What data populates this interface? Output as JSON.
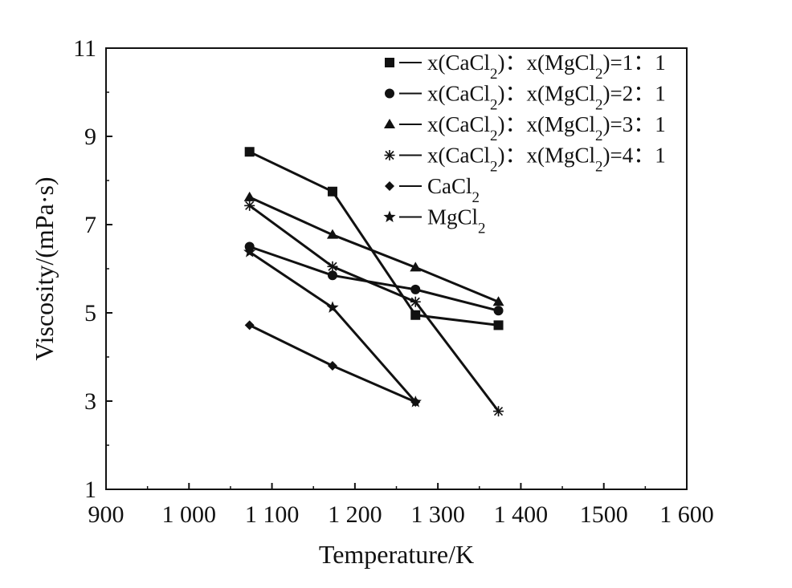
{
  "chart_data": {
    "type": "line",
    "xlabel": "Temperature/K",
    "ylabel": "Viscosity/(mPa·s)",
    "xlim": [
      900,
      1600
    ],
    "ylim": [
      1,
      11
    ],
    "x_ticks": [
      900,
      1000,
      1100,
      1200,
      1300,
      1400,
      1500,
      1600
    ],
    "x_tick_labels": [
      "900",
      "1 000",
      "1 100",
      "1 200",
      "1 300",
      "1 400",
      "1500",
      "1 600"
    ],
    "y_ticks": [
      1,
      3,
      5,
      7,
      9,
      11
    ],
    "y_tick_labels": [
      "1",
      "3",
      "5",
      "7",
      "9",
      "11"
    ],
    "grid": false,
    "legend_position": "top-right",
    "series": [
      {
        "name": "x(CaCl2)：x(MgCl2)=1：1",
        "marker": "square",
        "x": [
          1073,
          1173,
          1273,
          1373
        ],
        "y": [
          8.65,
          7.75,
          4.95,
          4.72
        ]
      },
      {
        "name": "x(CaCl2)：x(MgCl2)=2：1",
        "marker": "circle",
        "x": [
          1073,
          1173,
          1273,
          1373
        ],
        "y": [
          6.5,
          5.85,
          5.53,
          5.05
        ]
      },
      {
        "name": "x(CaCl2)：x(MgCl2)=3：1",
        "marker": "triangle",
        "x": [
          1073,
          1173,
          1273,
          1373
        ],
        "y": [
          7.62,
          6.77,
          6.03,
          5.25
        ]
      },
      {
        "name": "x(CaCl2)：x(MgCl2)=4：1",
        "marker": "asterisk",
        "x": [
          1073,
          1173,
          1273,
          1373
        ],
        "y": [
          7.43,
          6.05,
          5.25,
          2.77
        ]
      },
      {
        "name": "CaCl2",
        "marker": "diamond",
        "x": [
          1073,
          1173,
          1273
        ],
        "y": [
          4.72,
          3.8,
          2.98
        ]
      },
      {
        "name": "MgCl2",
        "marker": "star",
        "x": [
          1073,
          1173,
          1273
        ],
        "y": [
          6.38,
          5.12,
          2.98
        ]
      }
    ]
  }
}
